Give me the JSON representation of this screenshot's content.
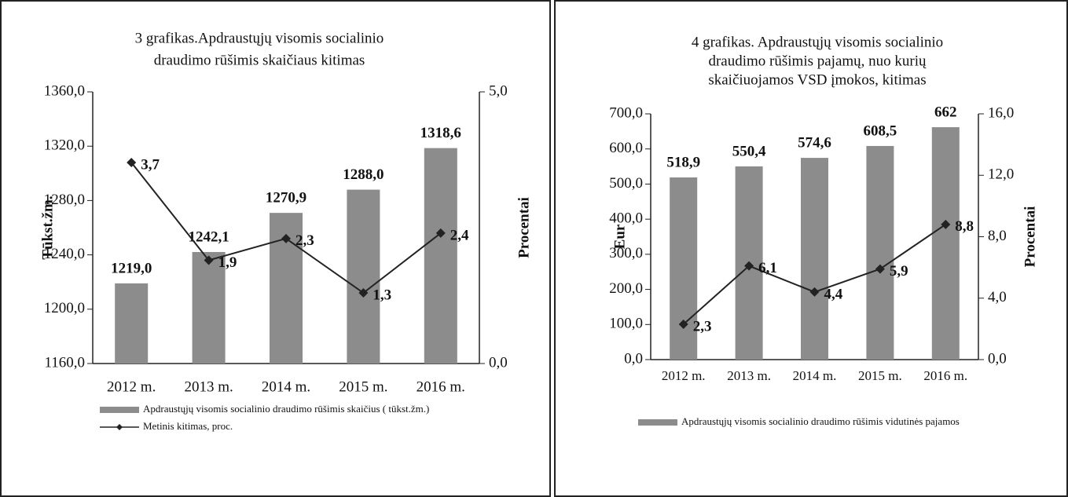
{
  "chart_data": [
    {
      "type": "bar_line",
      "title": [
        "3 grafikas.Apdraustųjų visomis socialinio",
        "draudimo rūšimis skaičiaus kitimas"
      ],
      "ylabel": "Tūkst.žm.",
      "y2label": "Procentai",
      "categories": [
        "2012 m.",
        "2013 m.",
        "2014 m.",
        "2015 m.",
        "2016 m."
      ],
      "series": [
        {
          "name": "Apdraustųjų visomis socialinio draudimo rūšimis skaičius ( tūkst.žm.)",
          "type": "bar",
          "color": "#8c8c8c",
          "values": [
            1219.0,
            1242.1,
            1270.9,
            1288.0,
            1318.6
          ],
          "value_labels": [
            "1219,0",
            "1242,1",
            "1270,9",
            "1288,0",
            "1318,6"
          ]
        },
        {
          "name": "Metinis kitimas, proc.",
          "type": "line",
          "axis": "y2",
          "color": "#222222",
          "values": [
            3.7,
            1.9,
            2.3,
            1.3,
            2.4
          ],
          "value_labels": [
            "3,7",
            "1,9",
            "2,3",
            "1,3",
            "2,4"
          ]
        }
      ],
      "ylim": [
        1160,
        1360
      ],
      "yticks": [
        {
          "value": 1160,
          "label": "1160,0"
        },
        {
          "value": 1200,
          "label": "1200,0"
        },
        {
          "value": 1240,
          "label": "1240,0"
        },
        {
          "value": 1280,
          "label": "1280,0"
        },
        {
          "value": 1320,
          "label": "1320,0"
        },
        {
          "value": 1360,
          "label": "1360,0"
        }
      ],
      "y2lim": [
        0,
        5
      ],
      "y2ticks": [
        {
          "value": 0,
          "label": "0,0"
        },
        {
          "value": 5,
          "label": "5,0"
        }
      ]
    },
    {
      "type": "bar_line",
      "title": [
        "4 grafikas. Apdraustųjų visomis socialinio",
        "draudimo rūšimis pajamų, nuo kurių",
        "skaičiuojamos VSD įmokos, kitimas"
      ],
      "ylabel": "Eur",
      "y2label": "Procentai",
      "categories": [
        "2012 m.",
        "2013 m.",
        "2014 m.",
        "2015 m.",
        "2016 m."
      ],
      "series": [
        {
          "name": "Apdraustųjų visomis socialinio draudimo rūšimis vidutinės pajamos",
          "type": "bar",
          "color": "#8c8c8c",
          "values": [
            518.9,
            550.4,
            574.6,
            608.5,
            662
          ],
          "value_labels": [
            "518,9",
            "550,4",
            "574,6",
            "608,5",
            "662"
          ]
        },
        {
          "type": "line",
          "axis": "y2",
          "color": "#222222",
          "values": [
            2.3,
            6.1,
            4.4,
            5.9,
            8.8
          ],
          "value_labels": [
            "2,3",
            "6,1",
            "4,4",
            "5,9",
            "8,8"
          ]
        }
      ],
      "ylim": [
        0,
        700
      ],
      "yticks": [
        {
          "value": 0,
          "label": "0,0"
        },
        {
          "value": 100,
          "label": "100,0"
        },
        {
          "value": 200,
          "label": "200,0"
        },
        {
          "value": 300,
          "label": "300,0"
        },
        {
          "value": 400,
          "label": "400,0"
        },
        {
          "value": 500,
          "label": "500,0"
        },
        {
          "value": 600,
          "label": "600,0"
        },
        {
          "value": 700,
          "label": "700,0"
        }
      ],
      "y2lim": [
        0,
        16
      ],
      "y2ticks": [
        {
          "value": 0,
          "label": "0,0"
        },
        {
          "value": 4,
          "label": "4,0"
        },
        {
          "value": 8,
          "label": "8,0"
        },
        {
          "value": 12,
          "label": "12,0"
        },
        {
          "value": 16,
          "label": "16,0"
        }
      ]
    }
  ]
}
